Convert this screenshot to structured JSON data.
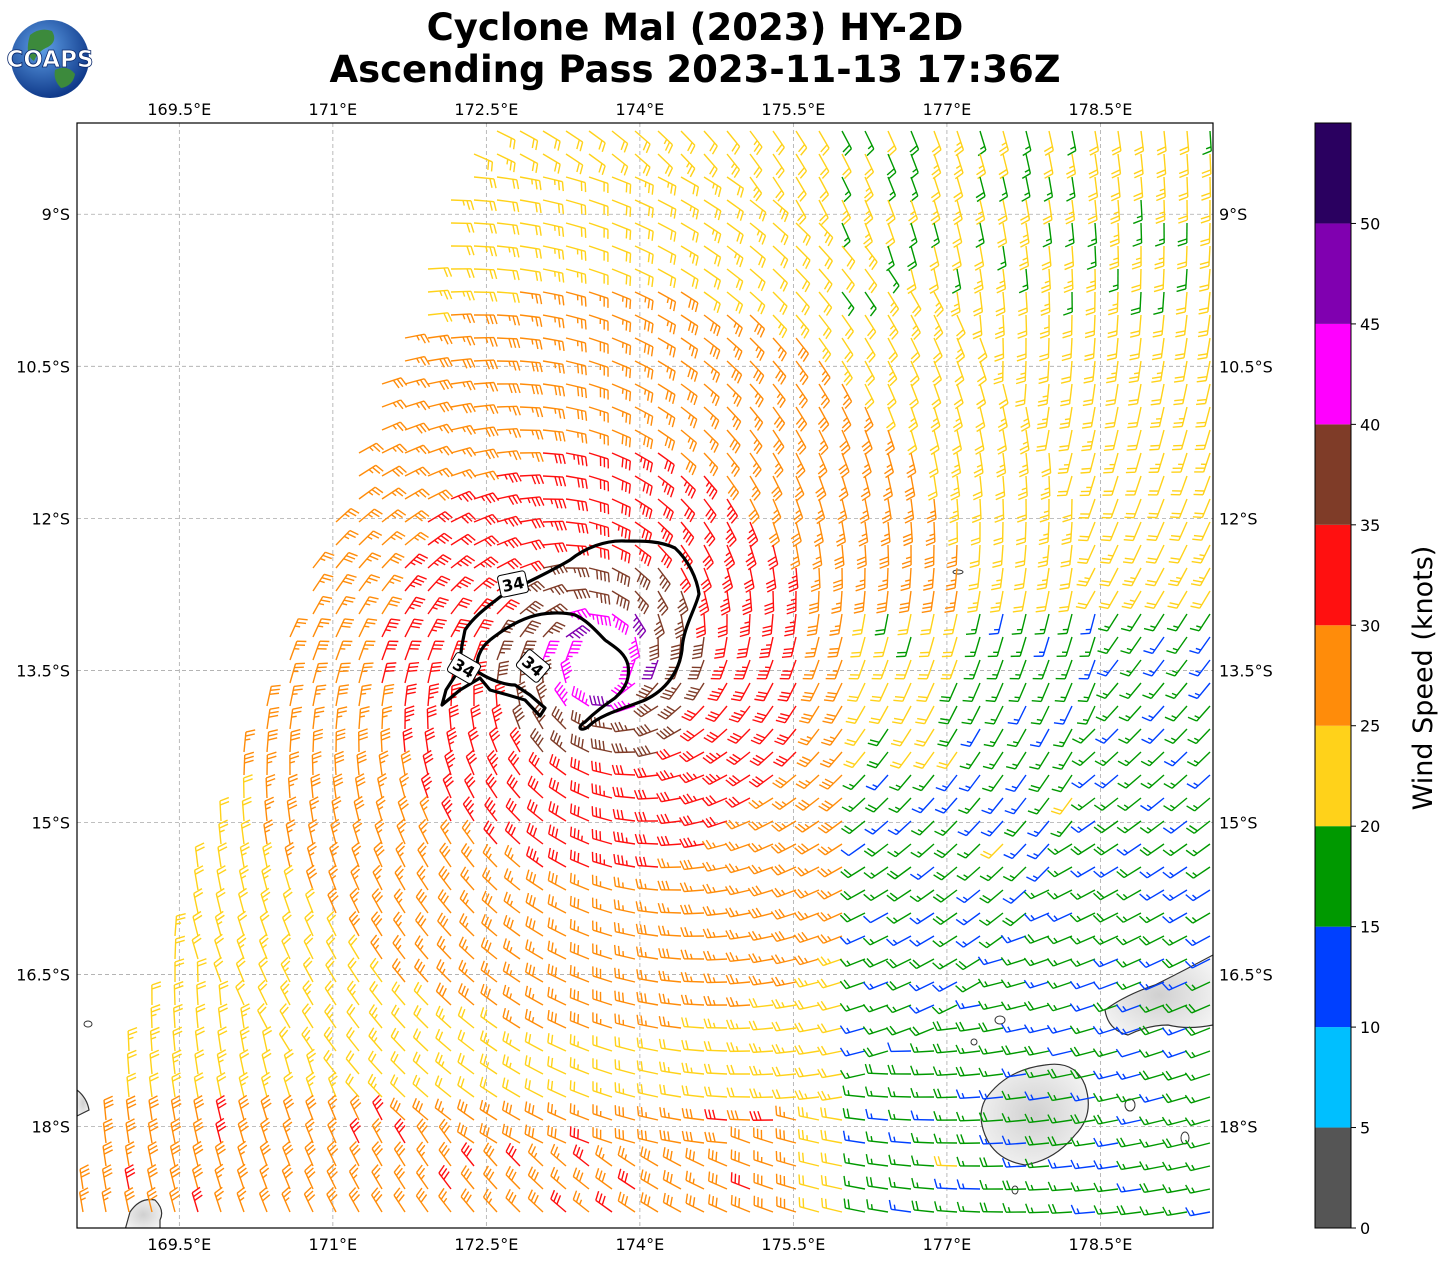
{
  "logo": {
    "text": "COAPS"
  },
  "title": {
    "line1": "Cyclone Mal (2023) HY-2D",
    "line2": "Ascending Pass 2023-11-13 17:36Z"
  },
  "map": {
    "lon_range": [
      168.5,
      179.6
    ],
    "lat_range": [
      -19.0,
      -8.1
    ],
    "x_ticks": [
      {
        "value": 169.5,
        "label": "169.5°E"
      },
      {
        "value": 171.0,
        "label": "171°E"
      },
      {
        "value": 172.5,
        "label": "172.5°E"
      },
      {
        "value": 174.0,
        "label": "174°E"
      },
      {
        "value": 175.5,
        "label": "175.5°E"
      },
      {
        "value": 177.0,
        "label": "177°E"
      },
      {
        "value": 178.5,
        "label": "178.5°E"
      }
    ],
    "y_ticks": [
      {
        "value": -9.0,
        "label": "9°S"
      },
      {
        "value": -10.5,
        "label": "10.5°S"
      },
      {
        "value": -12.0,
        "label": "12°S"
      },
      {
        "value": -13.5,
        "label": "13.5°S"
      },
      {
        "value": -15.0,
        "label": "15°S"
      },
      {
        "value": -16.5,
        "label": "16.5°S"
      },
      {
        "value": -18.0,
        "label": "18°S"
      }
    ],
    "storm_center": {
      "lon": 173.6,
      "lat": -13.4
    },
    "contour_labels": [
      "34",
      "34",
      "34"
    ],
    "gridlines": true
  },
  "colorbar": {
    "label": "Wind Speed (knots)",
    "ticks": [
      "0",
      "5",
      "10",
      "15",
      "20",
      "25",
      "30",
      "35",
      "40",
      "45",
      "50"
    ],
    "bins": [
      {
        "min": 0,
        "max": 5,
        "color": "#555555"
      },
      {
        "min": 5,
        "max": 10,
        "color": "#00bfff"
      },
      {
        "min": 10,
        "max": 15,
        "color": "#0040ff"
      },
      {
        "min": 15,
        "max": 20,
        "color": "#009900"
      },
      {
        "min": 20,
        "max": 25,
        "color": "#ffd21a"
      },
      {
        "min": 25,
        "max": 30,
        "color": "#ff8c0a"
      },
      {
        "min": 30,
        "max": 35,
        "color": "#ff1010"
      },
      {
        "min": 35,
        "max": 40,
        "color": "#7f3c28"
      },
      {
        "min": 40,
        "max": 45,
        "color": "#ff00ff"
      },
      {
        "min": 45,
        "max": 50,
        "color": "#8000b0"
      },
      {
        "min": 50,
        "max": 55,
        "color": "#2a0060"
      }
    ]
  }
}
